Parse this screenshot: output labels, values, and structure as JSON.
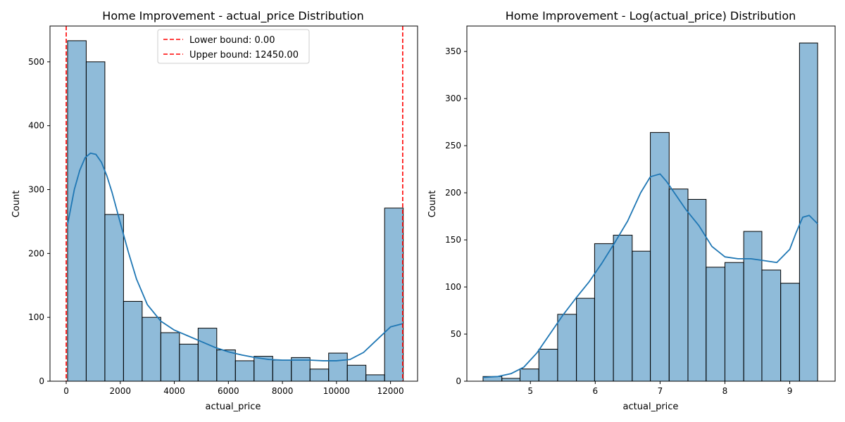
{
  "colors": {
    "bar_fill": "#1f77b4",
    "bar_fill_opacity": 0.5,
    "bar_edge": "#000000",
    "kde_line": "#1f77b4",
    "bound_line": "#ff0000"
  },
  "chart_data": [
    {
      "type": "bar",
      "title": "Home Improvement - actual_price Distribution",
      "xlabel": "actual_price",
      "ylabel": "Count",
      "xlim": [
        -600,
        13000
      ],
      "ylim": [
        0,
        556
      ],
      "xticks": [
        0,
        2000,
        4000,
        6000,
        8000,
        10000,
        12000
      ],
      "yticks": [
        0,
        100,
        200,
        300,
        400,
        500
      ],
      "grid": false,
      "bins": [
        {
          "x0": 50,
          "x1": 740,
          "count": 533
        },
        {
          "x0": 740,
          "x1": 1430,
          "count": 500
        },
        {
          "x0": 1430,
          "x1": 2120,
          "count": 261
        },
        {
          "x0": 2120,
          "x1": 2810,
          "count": 125
        },
        {
          "x0": 2810,
          "x1": 3500,
          "count": 100
        },
        {
          "x0": 3500,
          "x1": 4190,
          "count": 76
        },
        {
          "x0": 4190,
          "x1": 4880,
          "count": 58
        },
        {
          "x0": 4880,
          "x1": 5570,
          "count": 83
        },
        {
          "x0": 5570,
          "x1": 6260,
          "count": 49
        },
        {
          "x0": 6260,
          "x1": 6950,
          "count": 32
        },
        {
          "x0": 6950,
          "x1": 7640,
          "count": 39
        },
        {
          "x0": 7640,
          "x1": 8330,
          "count": 33
        },
        {
          "x0": 8330,
          "x1": 9020,
          "count": 37
        },
        {
          "x0": 9020,
          "x1": 9710,
          "count": 19
        },
        {
          "x0": 9710,
          "x1": 10400,
          "count": 44
        },
        {
          "x0": 10400,
          "x1": 11090,
          "count": 25
        },
        {
          "x0": 11090,
          "x1": 11780,
          "count": 10
        },
        {
          "x0": 11780,
          "x1": 12470,
          "count": 271
        }
      ],
      "kde": {
        "x": [
          50,
          300,
          500,
          700,
          900,
          1100,
          1300,
          1500,
          1700,
          2000,
          2300,
          2600,
          3000,
          3500,
          4000,
          4500,
          5000,
          5500,
          6000,
          6500,
          7000,
          7500,
          8000,
          8500,
          9000,
          9500,
          10000,
          10500,
          11000,
          11500,
          12000,
          12450
        ],
        "y": [
          245,
          300,
          330,
          350,
          357,
          355,
          343,
          322,
          295,
          248,
          202,
          160,
          120,
          94,
          80,
          71,
          62,
          53,
          46,
          41,
          37,
          34,
          33,
          33,
          33,
          32,
          32,
          34,
          45,
          65,
          85,
          90
        ]
      },
      "bounds": [
        {
          "value": 0,
          "label": "Lower bound: 0.00"
        },
        {
          "value": 12450,
          "label": "Upper bound: 12450.00"
        }
      ],
      "legend": "upper center"
    },
    {
      "type": "bar",
      "title": "Home Improvement - Log(actual_price) Distribution",
      "xlabel": "actual_price",
      "ylabel": "Count",
      "xlim": [
        4.02,
        9.7
      ],
      "ylim": [
        0,
        377
      ],
      "xticks": [
        5,
        6,
        7,
        8,
        9
      ],
      "yticks": [
        0,
        50,
        100,
        150,
        200,
        250,
        300,
        350
      ],
      "grid": false,
      "bins": [
        {
          "x0": 4.27,
          "x1": 4.56,
          "count": 5
        },
        {
          "x0": 4.56,
          "x1": 4.84,
          "count": 3
        },
        {
          "x0": 4.84,
          "x1": 5.13,
          "count": 13
        },
        {
          "x0": 5.13,
          "x1": 5.42,
          "count": 34
        },
        {
          "x0": 5.42,
          "x1": 5.71,
          "count": 71
        },
        {
          "x0": 5.71,
          "x1": 5.99,
          "count": 88
        },
        {
          "x0": 5.99,
          "x1": 6.28,
          "count": 146
        },
        {
          "x0": 6.28,
          "x1": 6.57,
          "count": 155
        },
        {
          "x0": 6.57,
          "x1": 6.85,
          "count": 138
        },
        {
          "x0": 6.85,
          "x1": 7.14,
          "count": 264
        },
        {
          "x0": 7.14,
          "x1": 7.43,
          "count": 204
        },
        {
          "x0": 7.43,
          "x1": 7.71,
          "count": 193
        },
        {
          "x0": 7.71,
          "x1": 8.0,
          "count": 121
        },
        {
          "x0": 8.0,
          "x1": 8.29,
          "count": 126
        },
        {
          "x0": 8.29,
          "x1": 8.57,
          "count": 159
        },
        {
          "x0": 8.57,
          "x1": 8.86,
          "count": 118
        },
        {
          "x0": 8.86,
          "x1": 9.15,
          "count": 104
        },
        {
          "x0": 9.15,
          "x1": 9.43,
          "count": 359
        }
      ],
      "kde": {
        "x": [
          4.27,
          4.5,
          4.7,
          4.9,
          5.1,
          5.3,
          5.5,
          5.7,
          5.9,
          6.1,
          6.3,
          6.5,
          6.7,
          6.85,
          7.0,
          7.1,
          7.25,
          7.4,
          7.6,
          7.8,
          8.0,
          8.2,
          8.4,
          8.6,
          8.8,
          9.0,
          9.1,
          9.2,
          9.3,
          9.43
        ],
        "y": [
          4,
          5,
          8,
          15,
          30,
          50,
          70,
          88,
          105,
          125,
          147,
          170,
          200,
          217,
          220,
          212,
          197,
          182,
          165,
          143,
          132,
          130,
          130,
          128,
          126,
          140,
          158,
          174,
          176,
          167
        ]
      },
      "bounds": [],
      "legend": null
    }
  ]
}
